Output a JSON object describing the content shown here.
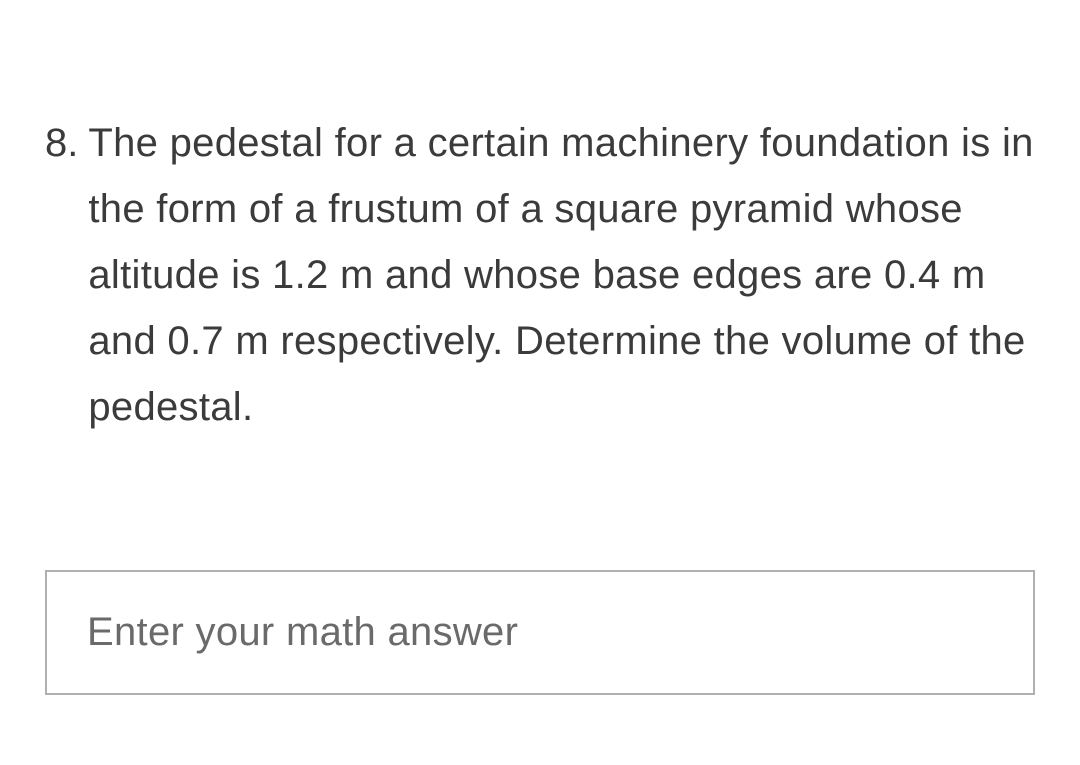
{
  "question": {
    "number": "8.",
    "text": "The pedestal for a certain machinery foundation is in the form of a frustum of a square pyramid whose altitude is 1.2 m and whose base edges are 0.4 m and 0.7 m respectively. Determine the volume of the pedestal."
  },
  "answerInput": {
    "placeholder": "Enter your math answer",
    "value": ""
  },
  "colors": {
    "textColor": "#3b3b3b",
    "placeholderColor": "#6a6a6a",
    "borderColor": "#b0b0b0",
    "backgroundColor": "#ffffff"
  },
  "typography": {
    "fontFamily": "Arial, Helvetica, sans-serif",
    "questionFontSize": 40,
    "placeholderFontSize": 40,
    "lineHeight": 1.65
  }
}
